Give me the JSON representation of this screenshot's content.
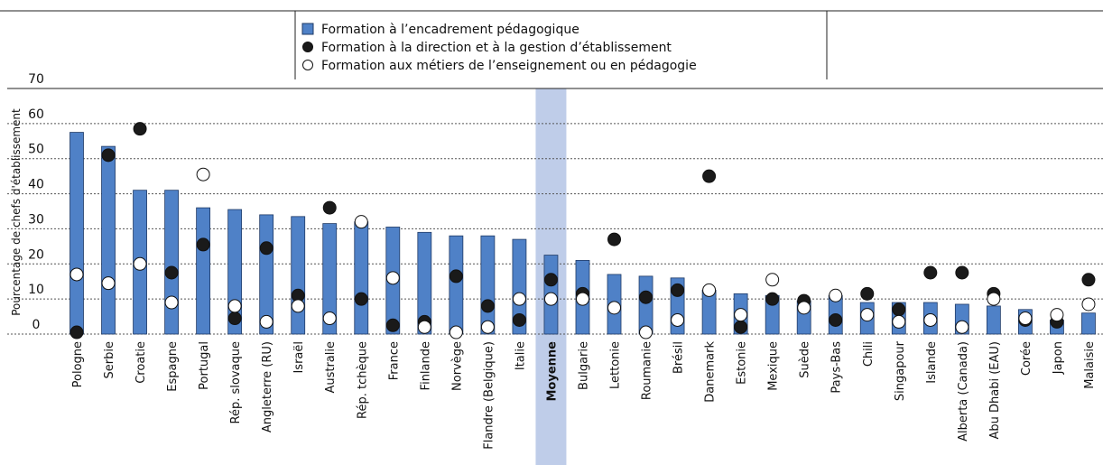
{
  "chart_data": {
    "type": "bar",
    "y_label": "Pourcentage de chefs d'établissement",
    "categories": [
      "Pologne",
      "Serbie",
      "Croatie",
      "Espagne",
      "Portugal",
      "Rép. slovaque",
      "Angleterre (RU)",
      "Israël",
      "Australie",
      "Rép. tchèque",
      "France",
      "Finlande",
      "Norvège",
      "Flandre (Belgique)",
      "Italie",
      "Moyenne",
      "Bulgarie",
      "Lettonie",
      "Roumanie",
      "Brésil",
      "Danemark",
      "Estonie",
      "Mexique",
      "Suède",
      "Pays-Bas",
      "Chili",
      "Singapour",
      "Islande",
      "Alberta (Canada)",
      "Abu Dhabi (EAU)",
      "Corée",
      "Japon",
      "Malaisie"
    ],
    "highlight": 15,
    "series": [
      {
        "name": "Formation à l’encadrement pédagogique",
        "marker": "bar",
        "color": "#4f81c7",
        "values": [
          57.5,
          53.5,
          41,
          41,
          36,
          35.5,
          34,
          33.5,
          31.5,
          32,
          30.5,
          29,
          28,
          28,
          27,
          22.5,
          21,
          17,
          16.5,
          16,
          12.5,
          11.5,
          11,
          9.5,
          11,
          9,
          9,
          9,
          8.5,
          8,
          7,
          4,
          6
        ]
      },
      {
        "name": "Formation à la direction et à la gestion d’établissement",
        "marker": "circle",
        "color": "#1a1a1a",
        "values": [
          0.5,
          51,
          58.5,
          17.5,
          25.5,
          4.5,
          24.5,
          11,
          36,
          10,
          2.5,
          3.5,
          16.5,
          8,
          4,
          15.5,
          11.5,
          27,
          10.5,
          12.5,
          45,
          2,
          10,
          9.5,
          4,
          11.5,
          7,
          17.5,
          17.5,
          11.5,
          4,
          3.5,
          15.5
        ]
      },
      {
        "name": "Formation aux métiers de l’enseignement ou en pédagogie",
        "marker": "circle",
        "color": "#ffffff",
        "values": [
          17,
          14.5,
          20,
          9,
          45.5,
          8,
          3.5,
          8,
          4.5,
          32,
          16,
          2,
          0.5,
          2,
          10,
          10,
          10,
          7.5,
          0.5,
          4,
          12.5,
          5.5,
          15.5,
          7.5,
          11,
          5.5,
          3.5,
          4,
          2,
          10,
          4.5,
          5.5,
          8.5
        ]
      }
    ],
    "ylim": [
      0,
      70
    ],
    "yticks": [
      0,
      10,
      20,
      30,
      40,
      50,
      60,
      70
    ],
    "grid": true
  }
}
